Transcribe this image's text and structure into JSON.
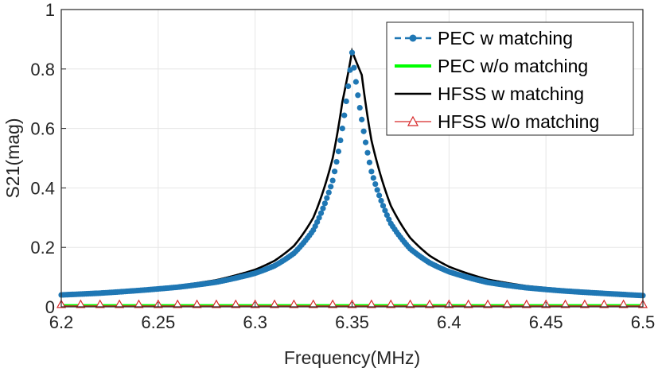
{
  "chart_data": {
    "type": "line",
    "title": "",
    "xlabel": "Frequency(MHz)",
    "ylabel": "S21(mag)",
    "xlim": [
      6.2,
      6.5
    ],
    "ylim": [
      0,
      1
    ],
    "xticks": [
      6.2,
      6.25,
      6.3,
      6.35,
      6.4,
      6.45,
      6.5
    ],
    "xtick_labels": [
      "6.2",
      "6.25",
      "6.3",
      "6.35",
      "6.4",
      "6.45",
      "6.5"
    ],
    "yticks": [
      0,
      0.2,
      0.4,
      0.6,
      0.8,
      1
    ],
    "ytick_labels": [
      "0",
      "0.2",
      "0.4",
      "0.6",
      "0.8",
      "1"
    ],
    "grid": true,
    "legend_position": "top-right",
    "series": [
      {
        "name": "PEC w matching",
        "color": "#1f77b4",
        "style": "dashed line with circle markers",
        "x": [
          6.2,
          6.22,
          6.24,
          6.26,
          6.28,
          6.3,
          6.31,
          6.32,
          6.33,
          6.34,
          6.345,
          6.35,
          6.355,
          6.36,
          6.37,
          6.38,
          6.39,
          6.4,
          6.42,
          6.44,
          6.46,
          6.48,
          6.5
        ],
        "y": [
          0.04,
          0.046,
          0.055,
          0.066,
          0.083,
          0.113,
          0.138,
          0.18,
          0.258,
          0.425,
          0.6,
          0.855,
          0.63,
          0.455,
          0.28,
          0.195,
          0.148,
          0.118,
          0.082,
          0.064,
          0.053,
          0.045,
          0.038
        ]
      },
      {
        "name": "PEC w/o matching",
        "color": "#00ff00",
        "style": "solid line",
        "x": [
          6.2,
          6.5
        ],
        "y": [
          0.005,
          0.005
        ]
      },
      {
        "name": "HFSS w matching",
        "color": "#000000",
        "style": "solid line",
        "x": [
          6.2,
          6.22,
          6.24,
          6.26,
          6.28,
          6.3,
          6.31,
          6.32,
          6.33,
          6.34,
          6.345,
          6.35,
          6.355,
          6.36,
          6.37,
          6.38,
          6.39,
          6.4,
          6.42,
          6.44,
          6.46,
          6.48,
          6.5
        ],
        "y": [
          0.042,
          0.049,
          0.058,
          0.071,
          0.09,
          0.125,
          0.155,
          0.205,
          0.3,
          0.5,
          0.69,
          0.86,
          0.78,
          0.56,
          0.34,
          0.232,
          0.172,
          0.135,
          0.092,
          0.07,
          0.058,
          0.049,
          0.042
        ]
      },
      {
        "name": "HFSS w/o matching",
        "color": "#d62728",
        "style": "solid line with triangle markers",
        "x": [
          6.2,
          6.21,
          6.22,
          6.23,
          6.24,
          6.25,
          6.26,
          6.27,
          6.28,
          6.29,
          6.3,
          6.31,
          6.32,
          6.33,
          6.34,
          6.35,
          6.36,
          6.37,
          6.38,
          6.39,
          6.4,
          6.41,
          6.42,
          6.43,
          6.44,
          6.45,
          6.46,
          6.47,
          6.48,
          6.49,
          6.5
        ],
        "y": [
          0.003,
          0.003,
          0.003,
          0.003,
          0.003,
          0.003,
          0.003,
          0.003,
          0.003,
          0.003,
          0.003,
          0.003,
          0.003,
          0.003,
          0.003,
          0.003,
          0.003,
          0.003,
          0.003,
          0.003,
          0.003,
          0.003,
          0.003,
          0.003,
          0.003,
          0.003,
          0.003,
          0.003,
          0.003,
          0.003,
          0.003
        ]
      }
    ]
  }
}
